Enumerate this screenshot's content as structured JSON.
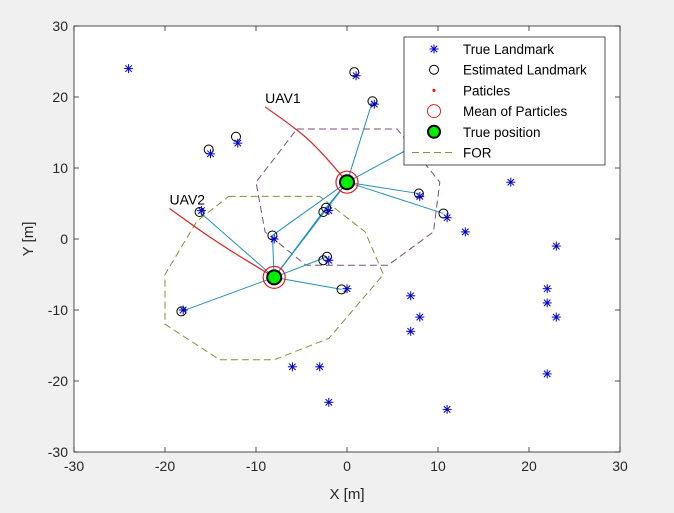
{
  "chart_data": {
    "type": "scatter",
    "xlabel": "X [m]",
    "ylabel": "Y [m]",
    "xlim": [
      -30,
      30
    ],
    "ylim": [
      -30,
      30
    ],
    "xticks": [
      -30,
      -20,
      -10,
      0,
      10,
      20,
      30
    ],
    "yticks": [
      -30,
      -20,
      -10,
      0,
      10,
      20,
      30
    ],
    "grid": false,
    "legend_placement": "top-right",
    "legend": [
      {
        "label": "True Landmark",
        "marker": "star"
      },
      {
        "label": "Estimated Landmark",
        "marker": "circle"
      },
      {
        "label": "Paticles",
        "marker": "dot"
      },
      {
        "label": "Mean of Particles",
        "marker": "big-circle"
      },
      {
        "label": "True position",
        "marker": "filled-circle"
      },
      {
        "label": "FOR",
        "marker": "dashed-line"
      }
    ],
    "colors": {
      "true_landmark": "#0000cc",
      "estimated_landmark": "#000000",
      "particles": "#e02020",
      "mean_of_particles": "#e02020",
      "true_position_fill": "#00ee00",
      "true_position_edge": "#000000",
      "trajectory": "#e02020",
      "link": "#2090c0",
      "for_uav1": "#7a4f7a",
      "for_uav2": "#8a8a40",
      "axes_background": "#ffffff"
    },
    "true_landmarks": [
      [
        -24,
        24
      ],
      [
        1,
        23
      ],
      [
        3,
        19
      ],
      [
        -15,
        12
      ],
      [
        -12,
        13.5
      ],
      [
        8,
        6
      ],
      [
        11,
        3
      ],
      [
        13,
        1
      ],
      [
        18,
        8
      ],
      [
        -2,
        4
      ],
      [
        -16,
        4
      ],
      [
        -8,
        0
      ],
      [
        -2,
        -3
      ],
      [
        0,
        -7
      ],
      [
        -18,
        -10
      ],
      [
        7,
        -8
      ],
      [
        8,
        -11
      ],
      [
        7,
        -13
      ],
      [
        -6,
        -18
      ],
      [
        -3,
        -18
      ],
      [
        -2,
        -23
      ],
      [
        11,
        -24
      ],
      [
        23,
        -1
      ],
      [
        22,
        -7
      ],
      [
        22,
        -9
      ],
      [
        23,
        -11
      ],
      [
        22,
        -19
      ]
    ],
    "estimated_landmarks": [
      [
        0.8,
        23.5
      ],
      [
        2.8,
        19.4
      ],
      [
        -15.2,
        12.6
      ],
      [
        -12.2,
        14.4
      ],
      [
        7.9,
        6.4
      ],
      [
        10.6,
        3.6
      ],
      [
        -2.3,
        4.4
      ],
      [
        -2.6,
        3.8
      ],
      [
        -16.2,
        3.8
      ],
      [
        -8.2,
        0.5
      ],
      [
        -2.2,
        -2.5
      ],
      [
        -2.6,
        -3.0
      ],
      [
        -0.6,
        -7.1
      ],
      [
        -18.2,
        -10.2
      ]
    ],
    "uavs": [
      {
        "name": "UAV1",
        "position": [
          0,
          8
        ],
        "trajectory": [
          [
            -9,
            18.6
          ],
          [
            -5.5,
            15.5
          ],
          [
            -3,
            12.5
          ],
          [
            -0.3,
            8.5
          ]
        ],
        "links": [
          [
            2.8,
            19.4
          ],
          [
            7.9,
            6.4
          ],
          [
            10.6,
            3.6
          ],
          [
            -2.3,
            4.4
          ],
          [
            -2.6,
            3.8
          ],
          [
            -8.2,
            0.5
          ],
          [
            -8,
            -5.4
          ],
          [
            6.5,
            12.5
          ]
        ],
        "for": [
          [
            -5.5,
            15.5
          ],
          [
            5.5,
            15.5
          ],
          [
            10.2,
            8
          ],
          [
            9.5,
            1
          ],
          [
            4.5,
            -3.7
          ],
          [
            -4.5,
            -3.7
          ],
          [
            -9,
            1
          ],
          [
            -10,
            8
          ]
        ]
      },
      {
        "name": "UAV2",
        "position": [
          -8,
          -5.4
        ],
        "trajectory": [
          [
            -19.5,
            4.3
          ],
          [
            -16.5,
            1.5
          ],
          [
            -13,
            -1.5
          ],
          [
            -8.5,
            -5
          ]
        ],
        "links": [
          [
            -16.2,
            3.8
          ],
          [
            -8.2,
            0.5
          ],
          [
            -18.2,
            -10.2
          ],
          [
            -2.2,
            -2.5
          ],
          [
            -0.6,
            -7.1
          ],
          [
            -2.3,
            4.4
          ],
          [
            0,
            8
          ]
        ],
        "for": [
          [
            -13,
            6
          ],
          [
            -3,
            6
          ],
          [
            2,
            1
          ],
          [
            4,
            -5
          ],
          [
            -2,
            -14
          ],
          [
            -8,
            -17
          ],
          [
            -14,
            -17
          ],
          [
            -20,
            -12
          ],
          [
            -20,
            -5
          ],
          [
            -16.5,
            2.5
          ]
        ]
      }
    ]
  }
}
